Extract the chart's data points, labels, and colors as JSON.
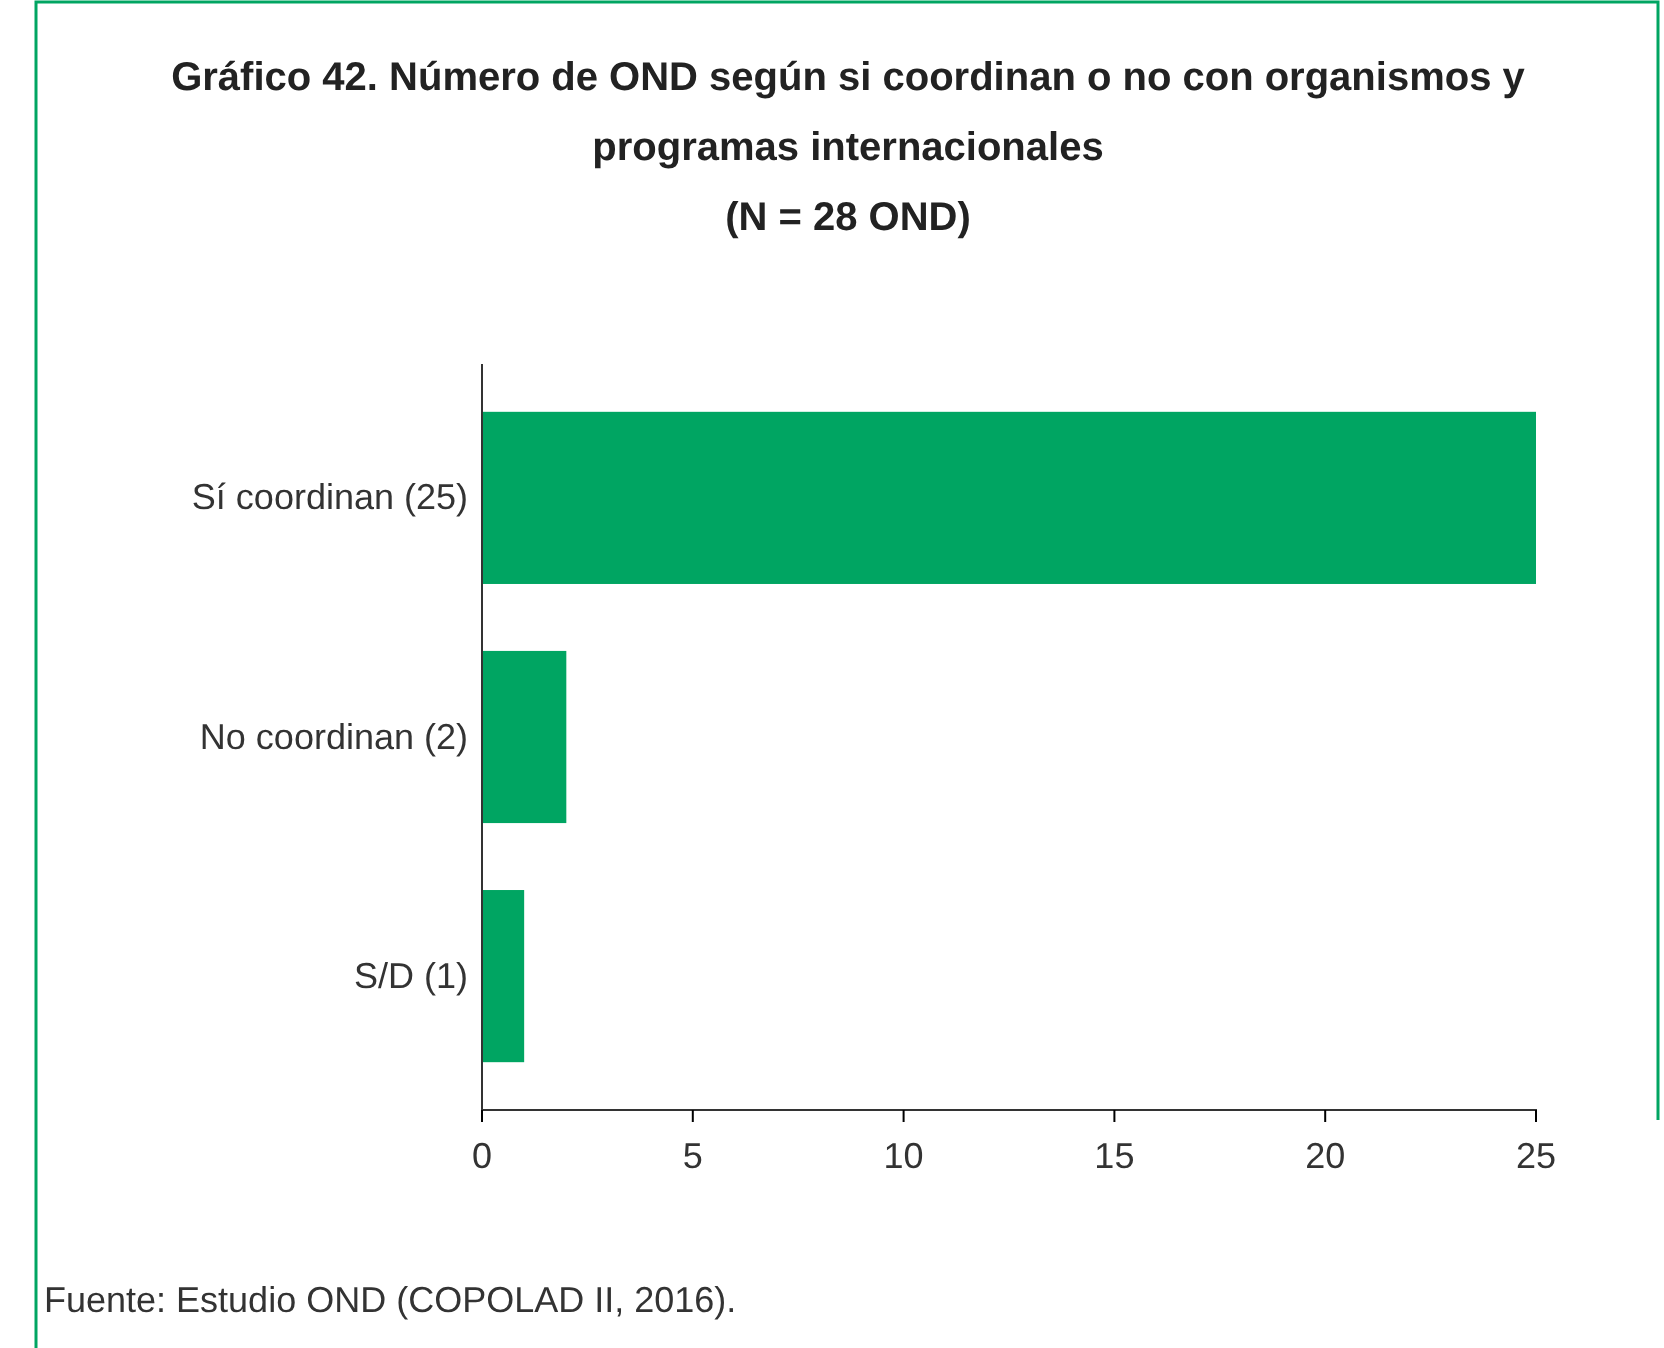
{
  "chart_data": {
    "type": "bar",
    "orientation": "horizontal",
    "title": "Gráfico 42. Número de OND según si coordinan o no con organismos y programas internacionales",
    "subtitle": "(N = 28 OND)",
    "categories": [
      "Sí coordinan (25)",
      "No coordinan (2)",
      "S/D (1)"
    ],
    "values": [
      25,
      2,
      1
    ],
    "color": "#00a562",
    "xlim": [
      0,
      25
    ],
    "xticks": [
      0,
      5,
      10,
      15,
      20,
      25
    ],
    "grid": false,
    "annotations": [
      "Fuente: Estudio OND (COPOLAD II, 2016)."
    ]
  }
}
